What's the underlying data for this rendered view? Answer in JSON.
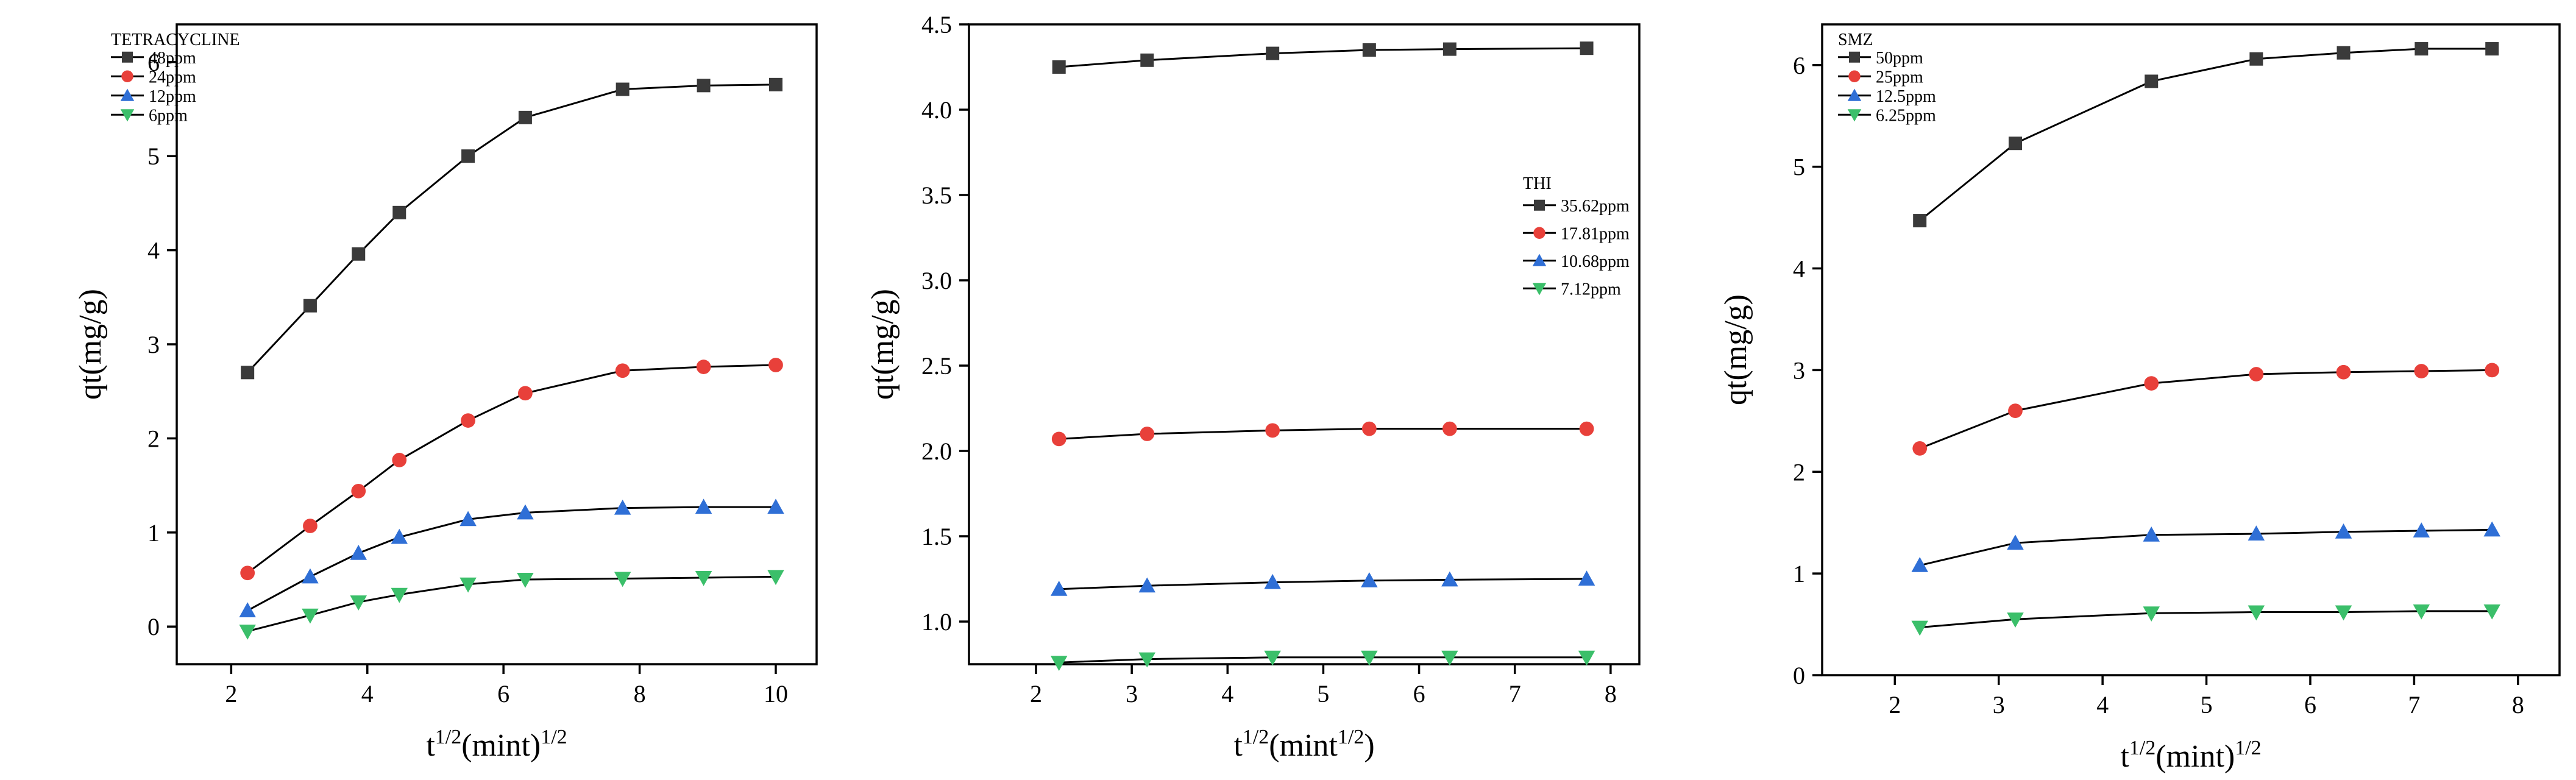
{
  "chart_data": [
    {
      "type": "line",
      "legend_title": "TETRACYCLINE",
      "legend_position": "top-left",
      "xlabel": {
        "base": "t",
        "sup1": "1/2",
        "mid": "(mint)",
        "sup2": "1/2",
        "end": ""
      },
      "ylabel": "qt(mg/g)",
      "xlim": [
        1.2,
        10.6
      ],
      "ylim": [
        -0.4,
        6.4
      ],
      "xticks": [
        2,
        4,
        6,
        8,
        10
      ],
      "yticks": [
        0,
        1,
        2,
        3,
        4,
        5,
        6
      ],
      "ytick_labels": [
        "0",
        "1",
        "2",
        "3",
        "4",
        "5",
        "6"
      ],
      "x": [
        2.24,
        3.16,
        3.87,
        4.47,
        5.48,
        6.32,
        7.75,
        8.94,
        10.0
      ],
      "series": [
        {
          "name": "48ppm",
          "color": "#3a3a3a",
          "marker": "square",
          "values": [
            2.7,
            3.41,
            3.96,
            4.4,
            5.0,
            5.41,
            5.71,
            5.75,
            5.76
          ]
        },
        {
          "name": "24ppm",
          "color": "#e8403a",
          "marker": "circle",
          "values": [
            0.57,
            1.07,
            1.44,
            1.77,
            2.19,
            2.48,
            2.72,
            2.76,
            2.78
          ]
        },
        {
          "name": "12ppm",
          "color": "#2f6fd6",
          "marker": "triangle-up",
          "values": [
            0.17,
            0.53,
            0.78,
            0.95,
            1.14,
            1.21,
            1.26,
            1.27,
            1.27
          ]
        },
        {
          "name": "6ppm",
          "color": "#3bbf6a",
          "marker": "triangle-down",
          "values": [
            -0.05,
            0.12,
            0.26,
            0.34,
            0.45,
            0.5,
            0.51,
            0.52,
            0.53
          ]
        }
      ]
    },
    {
      "type": "line",
      "legend_title": "THI",
      "legend_position": "center-right",
      "xlabel": {
        "base": "t",
        "sup1": "1/2",
        "mid": "(mint",
        "sup2": "1/2",
        "end": ")"
      },
      "ylabel": "qt(mg/g)",
      "xlim": [
        1.3,
        8.3
      ],
      "ylim": [
        0.75,
        4.5
      ],
      "xticks": [
        2,
        3,
        4,
        5,
        6,
        7,
        8
      ],
      "yticks": [
        1.0,
        1.5,
        2.0,
        2.5,
        3.0,
        3.5,
        4.0,
        4.5
      ],
      "ytick_labels": [
        "1.0",
        "1.5",
        "2.0",
        "2.5",
        "3.0",
        "3.5",
        "4.0",
        "4.5"
      ],
      "x": [
        2.24,
        3.16,
        4.47,
        5.48,
        6.32,
        7.75
      ],
      "series": [
        {
          "name": "35.62ppm",
          "color": "#3a3a3a",
          "marker": "square",
          "values": [
            4.25,
            4.29,
            4.33,
            4.35,
            4.355,
            4.36
          ]
        },
        {
          "name": "17.81ppm",
          "color": "#e8403a",
          "marker": "circle",
          "values": [
            2.07,
            2.1,
            2.12,
            2.13,
            2.13,
            2.13
          ]
        },
        {
          "name": "10.68ppm",
          "color": "#2f6fd6",
          "marker": "triangle-up",
          "values": [
            1.19,
            1.21,
            1.23,
            1.24,
            1.245,
            1.25
          ]
        },
        {
          "name": "7.12ppm",
          "color": "#3bbf6a",
          "marker": "triangle-down",
          "values": [
            0.76,
            0.78,
            0.79,
            0.79,
            0.79,
            0.79
          ]
        }
      ]
    },
    {
      "type": "line",
      "legend_title": "SMZ",
      "legend_position": "top-left",
      "xlabel": {
        "base": "t",
        "sup1": "1/2",
        "mid": "(mint)",
        "sup2": "1/2",
        "end": ""
      },
      "ylabel": "qt(mg/g)",
      "xlim": [
        1.3,
        8.4
      ],
      "ylim": [
        0,
        6.4
      ],
      "xticks": [
        2,
        3,
        4,
        5,
        6,
        7,
        8
      ],
      "yticks": [
        0,
        1,
        2,
        3,
        4,
        5,
        6
      ],
      "ytick_labels": [
        "0",
        "1",
        "2",
        "3",
        "4",
        "5",
        "6"
      ],
      "x": [
        2.24,
        3.16,
        4.47,
        5.48,
        6.32,
        7.07,
        7.75
      ],
      "series": [
        {
          "name": "50ppm",
          "color": "#3a3a3a",
          "marker": "square",
          "values": [
            4.47,
            5.23,
            5.84,
            6.06,
            6.12,
            6.16,
            6.16
          ]
        },
        {
          "name": "25ppm",
          "color": "#e8403a",
          "marker": "circle",
          "values": [
            2.23,
            2.6,
            2.87,
            2.96,
            2.98,
            2.99,
            3.0
          ]
        },
        {
          "name": "12.5ppm",
          "color": "#2f6fd6",
          "marker": "triangle-up",
          "values": [
            1.08,
            1.3,
            1.38,
            1.39,
            1.41,
            1.42,
            1.43
          ]
        },
        {
          "name": "6.25ppm",
          "color": "#3bbf6a",
          "marker": "triangle-down",
          "values": [
            0.47,
            0.55,
            0.61,
            0.62,
            0.62,
            0.63,
            0.63
          ]
        }
      ]
    }
  ]
}
